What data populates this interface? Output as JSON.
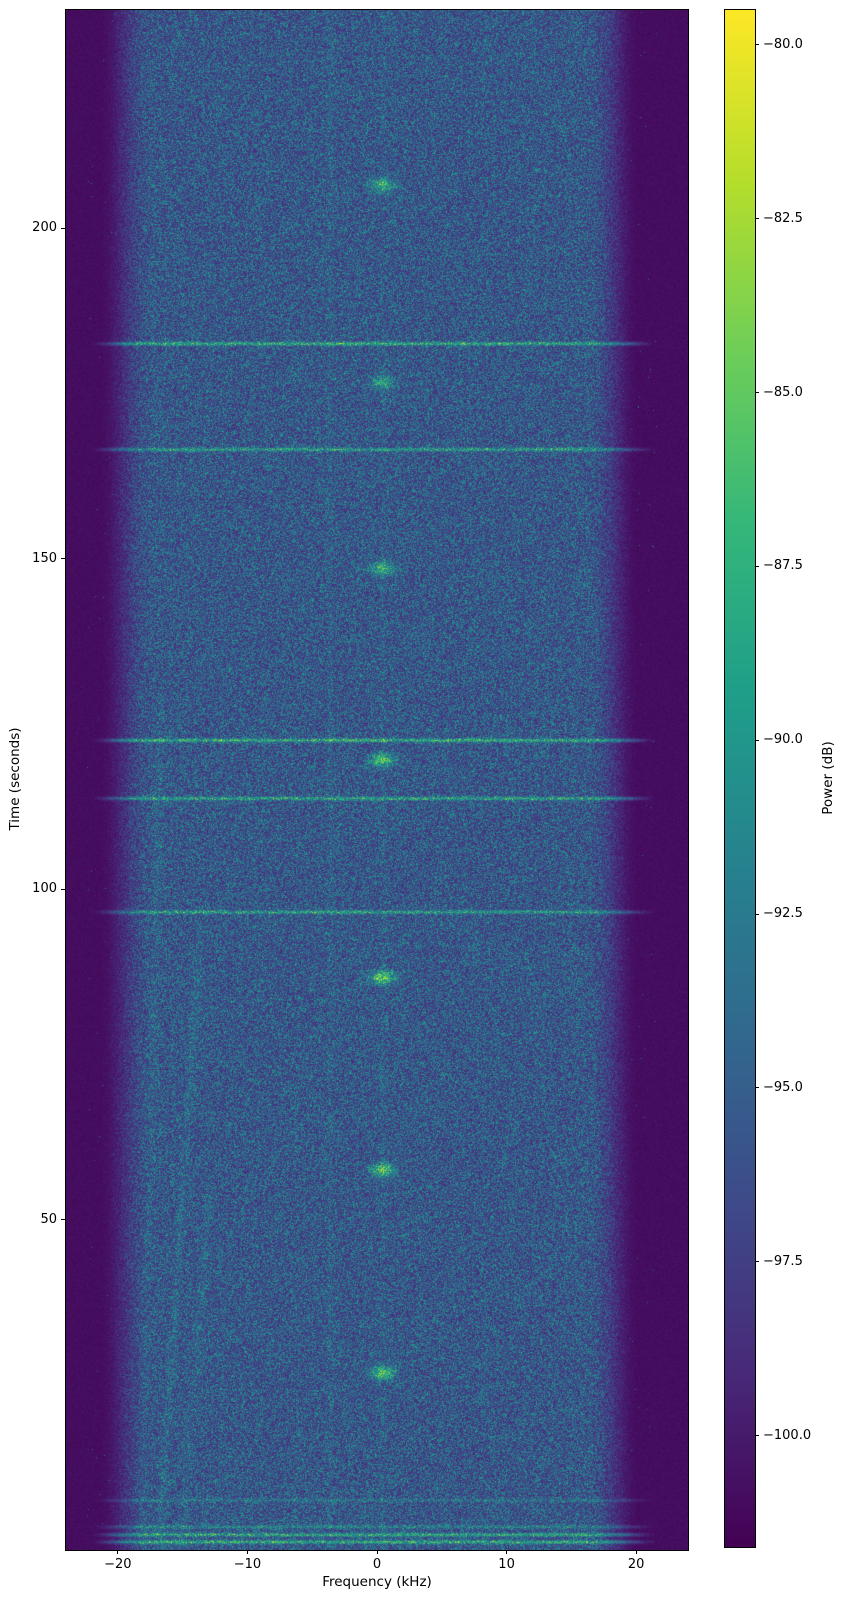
{
  "figure": {
    "background_color": "#ffffff",
    "text_color": "#000000",
    "spine_color": "#000000"
  },
  "chart_data": {
    "type": "heatmap",
    "subtype": "spectrogram-waterfall",
    "title": "",
    "xlabel": "Frequency (kHz)",
    "ylabel": "Time (seconds)",
    "colorbar_label": "Power (dB)",
    "grid": false,
    "legend": null,
    "xlim": [
      -24,
      24
    ],
    "ylim": [
      0,
      233
    ],
    "xtick_values": [
      -20,
      -10,
      0,
      10,
      20
    ],
    "xtick_labels": [
      "−20",
      "−10",
      "0",
      "10",
      "20"
    ],
    "ytick_values": [
      50,
      100,
      150,
      200
    ],
    "ytick_labels": [
      "50",
      "100",
      "150",
      "200"
    ],
    "colorbar_tick_values": [
      -80.0,
      -82.5,
      -85.0,
      -87.5,
      -90.0,
      -92.5,
      -95.0,
      -97.5,
      -100.0
    ],
    "colorbar_tick_labels": [
      "−80.0",
      "−82.5",
      "−85.0",
      "−87.5",
      "−90.0",
      "−92.5",
      "−95.0",
      "−97.5",
      "−100.0"
    ],
    "colorbar_range_db": [
      -101.6,
      -79.5
    ],
    "colormap": "viridis",
    "colormap_stops": [
      "#440154",
      "#482878",
      "#3e4a89",
      "#31688e",
      "#26828e",
      "#1f9e89",
      "#35b779",
      "#6ece58",
      "#b5de2b",
      "#fde725"
    ],
    "noise_band": {
      "description": "broadband noise occupying roughly -20 to +20 kHz with soft fades to a dark floor at the edges",
      "fade_in_khz": [
        -21.3,
        -17.3
      ],
      "fade_out_khz": [
        16.3,
        20.1
      ],
      "floor_db": -101.2,
      "typical_db": -95.5,
      "speckle_peak_db": -91.5
    },
    "broadband_pulses": [
      {
        "t_s": 182.5,
        "boost_db": 8.5
      },
      {
        "t_s": 166.5,
        "boost_db": 7.0
      },
      {
        "t_s": 122.5,
        "boost_db": 9.0
      },
      {
        "t_s": 113.7,
        "boost_db": 8.0
      },
      {
        "t_s": 96.5,
        "boost_db": 7.0
      },
      {
        "t_s": 7.5,
        "boost_db": 3.0
      },
      {
        "t_s": 3.5,
        "boost_db": 4.5
      },
      {
        "t_s": 2.3,
        "boost_db": 8.0
      },
      {
        "t_s": 1.2,
        "boost_db": 8.5
      }
    ],
    "tone_bursts": {
      "center_khz": 0.45,
      "bandwidth_khz": 1.5,
      "duration_s": 1.6,
      "period_s": 30,
      "events": [
        {
          "t_s": 26.8,
          "boost_db": 11.0
        },
        {
          "t_s": 57.5,
          "boost_db": 11.0
        },
        {
          "t_s": 86.6,
          "boost_db": 12.0
        },
        {
          "t_s": 119.5,
          "boost_db": 10.5
        },
        {
          "t_s": 148.5,
          "boost_db": 9.0
        },
        {
          "t_s": 176.6,
          "boost_db": 7.5
        },
        {
          "t_s": 206.5,
          "boost_db": 9.5
        }
      ]
    },
    "vertical_streaks": [
      {
        "f_khz": -3.6,
        "boost_db": 1.6
      },
      {
        "f_khz": 0.45,
        "boost_db": 1.2
      }
    ],
    "diagonal_streaks": [
      {
        "f0_khz": -16.8,
        "t0_s": 0,
        "f1_khz": -13.6,
        "t1_s": 95,
        "boost_db": 1.8
      },
      {
        "f0_khz": -15.1,
        "t0_s": 0,
        "f1_khz": -12.9,
        "t1_s": 55,
        "boost_db": 1.4
      },
      {
        "f0_khz": -18.2,
        "t0_s": 0,
        "f1_khz": -16.6,
        "t1_s": 130,
        "boost_db": 1.2
      }
    ]
  }
}
